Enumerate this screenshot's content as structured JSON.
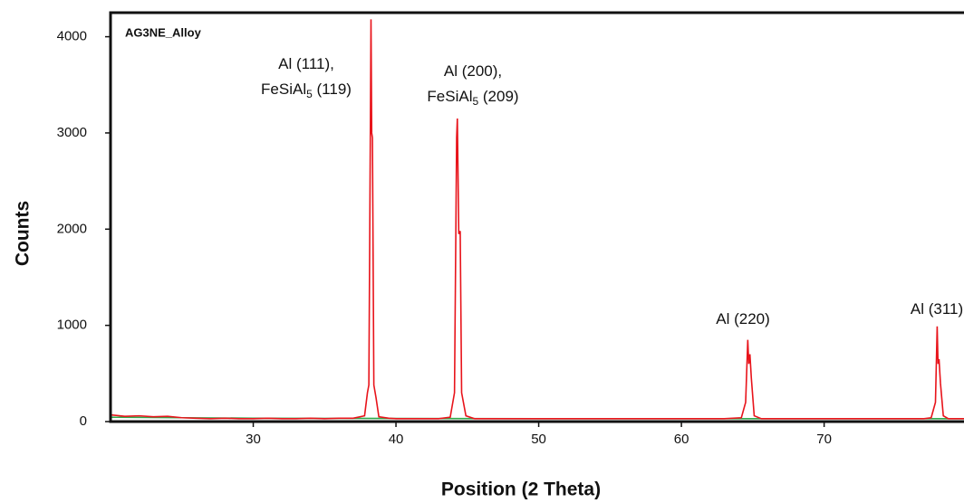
{
  "chart_data": {
    "type": "line",
    "title": "AG3NE_Alloy",
    "x_label": "Position (2 Theta)",
    "y_label": "Counts",
    "xlim": [
      20,
      79.8
    ],
    "ylim": [
      0,
      4250
    ],
    "xticks": [
      30,
      40,
      50,
      60,
      70
    ],
    "yticks": [
      0,
      1000,
      2000,
      3000,
      4000
    ],
    "grid": false,
    "series": [
      {
        "color": "#e8141b",
        "x": [
          20,
          21,
          22,
          23,
          24,
          25,
          26,
          27,
          28,
          29,
          30,
          31,
          32,
          33,
          34,
          35,
          36,
          37,
          37.8,
          38.0,
          38.1,
          38.2,
          38.25,
          38.3,
          38.35,
          38.45,
          38.6,
          38.8,
          39.5,
          40,
          41,
          42,
          43,
          43.8,
          44.1,
          44.25,
          44.3,
          44.4,
          44.5,
          44.6,
          44.9,
          45.5,
          47,
          49,
          51,
          53,
          55,
          57,
          59,
          61,
          63,
          64.2,
          64.5,
          64.65,
          64.72,
          64.8,
          64.9,
          65.1,
          65.6,
          67,
          69,
          71,
          73,
          75,
          77,
          77.5,
          77.8,
          77.92,
          77.98,
          78.05,
          78.15,
          78.35,
          78.7,
          79.8
        ],
        "values": [
          70,
          55,
          60,
          50,
          55,
          40,
          35,
          30,
          35,
          30,
          30,
          35,
          30,
          30,
          35,
          30,
          35,
          35,
          60,
          300,
          380,
          2900,
          4180,
          3000,
          2950,
          380,
          250,
          50,
          35,
          30,
          30,
          30,
          30,
          45,
          300,
          2950,
          3150,
          1950,
          1980,
          300,
          60,
          30,
          30,
          30,
          30,
          30,
          30,
          30,
          30,
          30,
          30,
          40,
          200,
          850,
          600,
          700,
          450,
          60,
          30,
          30,
          30,
          30,
          30,
          30,
          30,
          40,
          200,
          990,
          600,
          650,
          400,
          60,
          30,
          30
        ]
      },
      {
        "color": "#2ea84a",
        "x": [
          20,
          25,
          30,
          40,
          50,
          60,
          70,
          79.8
        ],
        "values": [
          45,
          40,
          35,
          32,
          30,
          30,
          30,
          30
        ]
      }
    ],
    "annotations": [
      {
        "lines": [
          [
            "Al (111),"
          ],
          [
            "FeSiAl",
            "5",
            " (119)"
          ]
        ]
      },
      {
        "lines": [
          [
            "Al (200),"
          ],
          [
            "FeSiAl",
            "5",
            " (209)"
          ]
        ]
      },
      {
        "lines": [
          [
            "Al (220)"
          ]
        ]
      },
      {
        "lines": [
          [
            "Al (311)"
          ]
        ]
      }
    ]
  }
}
